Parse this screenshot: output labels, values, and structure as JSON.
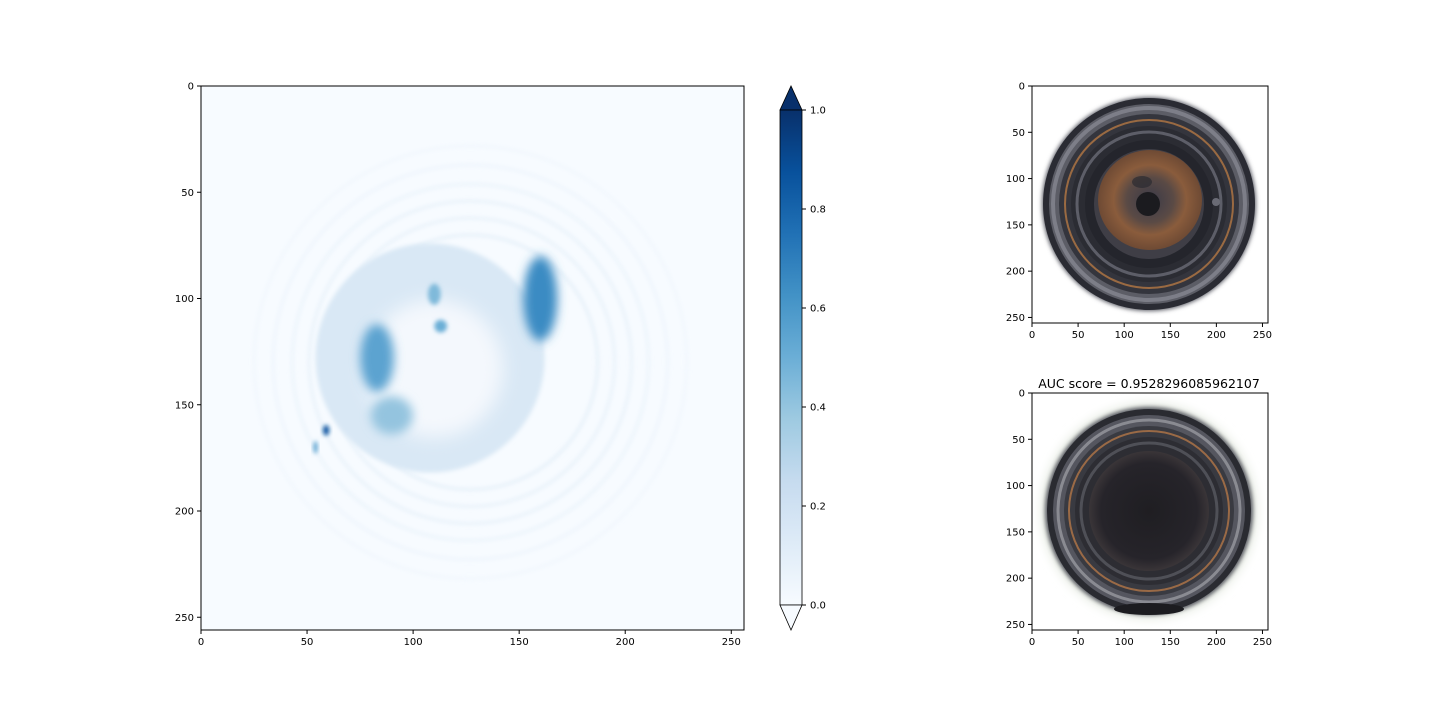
{
  "chart_data": [
    {
      "type": "heatmap",
      "title": "",
      "xlabel": "",
      "ylabel": "",
      "xlim": [
        0,
        256
      ],
      "ylim": [
        256,
        0
      ],
      "x_ticks": [
        0,
        50,
        100,
        150,
        200,
        250
      ],
      "y_ticks": [
        0,
        50,
        100,
        150,
        200,
        250
      ],
      "colormap": "Blues",
      "colorbar": {
        "range": [
          0.0,
          1.0
        ],
        "extend": "both",
        "ticks": [
          "0.0",
          "0.2",
          "0.4",
          "0.6",
          "0.8",
          "1.0"
        ]
      },
      "image_center": [
        127,
        130
      ],
      "features": [
        {
          "shape": "disc",
          "center": [
            108,
            128
          ],
          "radius": 54,
          "value": 0.15
        },
        {
          "shape": "blob",
          "center": [
            160,
            100
          ],
          "rx": 8,
          "ry": 20,
          "value": 0.65
        },
        {
          "shape": "blob",
          "center": [
            83,
            128
          ],
          "rx": 8,
          "ry": 16,
          "value": 0.55
        },
        {
          "shape": "blob",
          "center": [
            90,
            155
          ],
          "rx": 10,
          "ry": 9,
          "value": 0.4
        },
        {
          "shape": "blob",
          "center": [
            110,
            98
          ],
          "rx": 3,
          "ry": 5,
          "value": 0.45
        },
        {
          "shape": "blob",
          "center": [
            113,
            113
          ],
          "rx": 3,
          "ry": 3,
          "value": 0.5
        },
        {
          "shape": "blob",
          "center": [
            59,
            162
          ],
          "rx": 1.5,
          "ry": 2.5,
          "value": 0.85
        },
        {
          "shape": "blob",
          "center": [
            54,
            170
          ],
          "rx": 1,
          "ry": 3,
          "value": 0.55
        }
      ],
      "rings": [
        {
          "radius": 60,
          "value": 0.06
        },
        {
          "radius": 68,
          "value": 0.05
        },
        {
          "radius": 76,
          "value": 0.05
        },
        {
          "radius": 84,
          "value": 0.04
        },
        {
          "radius": 93,
          "value": 0.03
        },
        {
          "radius": 102,
          "value": 0.02
        }
      ]
    },
    {
      "type": "image",
      "title": "",
      "xlim": [
        0,
        256
      ],
      "ylim": [
        256,
        0
      ],
      "x_ticks": [
        0,
        50,
        100,
        150,
        200,
        250
      ],
      "y_ticks": [
        0,
        50,
        100,
        150,
        200,
        250
      ],
      "content": "top view of bottle neck (ground truth)"
    },
    {
      "type": "image",
      "title": "AUC score = 0.9528296085962107",
      "xlim": [
        0,
        256
      ],
      "ylim": [
        256,
        0
      ],
      "x_ticks": [
        0,
        50,
        100,
        150,
        200,
        250
      ],
      "y_ticks": [
        0,
        50,
        100,
        150,
        200,
        250
      ],
      "content": "top view of bottle neck (input)"
    }
  ],
  "colors": {
    "background": "#f7fbff",
    "cmap_low": "#f7fbff",
    "cmap_high": "#08306b",
    "frame": "#000000"
  }
}
